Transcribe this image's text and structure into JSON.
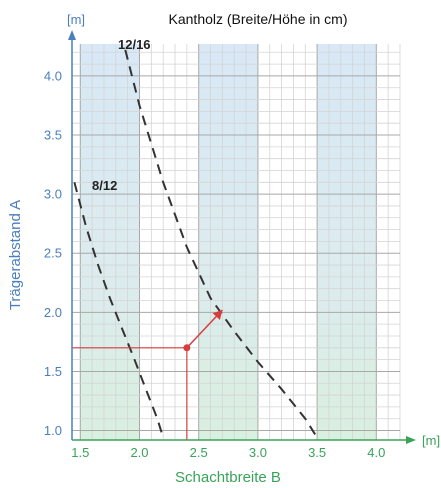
{
  "chart_data": {
    "type": "line",
    "title": "Kantholz (Breite/Höhe in cm)",
    "xlabel": "Schachtbreite B",
    "ylabel": "Trägerabstand A",
    "x_unit": "[m]",
    "y_unit": "[m]",
    "xlim": [
      1.43,
      4.2
    ],
    "ylim": [
      0.92,
      4.27
    ],
    "x_ticks": [
      "1.5",
      "2.0",
      "2.5",
      "3.0",
      "3.5",
      "4.0"
    ],
    "y_ticks": [
      "1.0",
      "1.5",
      "2.0",
      "2.5",
      "3.0",
      "3.5",
      "4.0"
    ],
    "grid": true,
    "x_bands": [
      [
        1.5,
        2.0
      ],
      [
        2.5,
        3.0
      ],
      [
        3.5,
        4.0
      ]
    ],
    "series": [
      {
        "name": "8/12",
        "style": "dashed",
        "points": [
          [
            1.45,
            3.1
          ],
          [
            1.55,
            2.72
          ],
          [
            1.65,
            2.4
          ],
          [
            1.75,
            2.12
          ],
          [
            1.85,
            1.87
          ],
          [
            1.95,
            1.62
          ],
          [
            2.05,
            1.36
          ],
          [
            2.15,
            1.1
          ],
          [
            2.2,
            0.94
          ]
        ]
      },
      {
        "name": "12/16",
        "style": "dashed",
        "points": [
          [
            1.88,
            4.22
          ],
          [
            2.0,
            3.75
          ],
          [
            2.2,
            3.1
          ],
          [
            2.4,
            2.55
          ],
          [
            2.6,
            2.12
          ],
          [
            2.8,
            1.84
          ],
          [
            3.0,
            1.58
          ],
          [
            3.2,
            1.35
          ],
          [
            3.4,
            1.1
          ],
          [
            3.5,
            0.94
          ]
        ]
      }
    ],
    "example_point": [
      2.4,
      1.7
    ],
    "example_arrow_to": [
      2.7,
      2.02
    ],
    "colors": {
      "y_axis": "#4a7fbf",
      "x_axis": "#3aa35a",
      "band_top": "#d8e8f6",
      "band_bottom": "#d9efdf",
      "grid": "#c8c8c8",
      "curve": "#333333",
      "example": "#d93c3c"
    }
  }
}
